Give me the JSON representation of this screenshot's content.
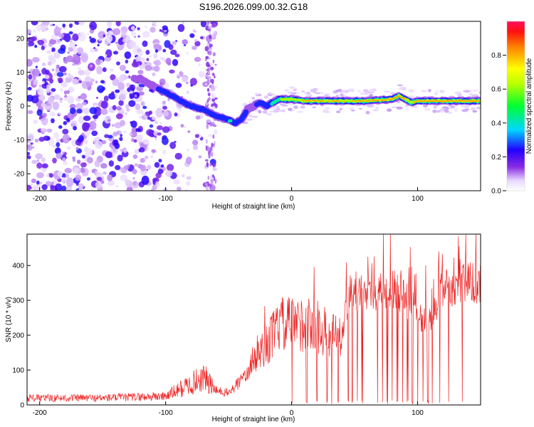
{
  "chart_data": [
    {
      "type": "heatmap",
      "title": "S196.2026.099.00.32.G18",
      "xlabel": "Height of straight line (km)",
      "ylabel": "Frequency (Hz)",
      "xlim": [
        -210,
        150
      ],
      "ylim": [
        -25,
        25
      ],
      "xticks": [
        -200,
        -100,
        0,
        100
      ],
      "yticks": [
        -20,
        -10,
        0,
        10,
        20
      ],
      "colorbar": {
        "label": "Normalized spectral amplitude",
        "range": [
          0.0,
          1.0
        ],
        "ticks": [
          0.0,
          0.2,
          0.4,
          0.6,
          0.8
        ]
      },
      "ridge": {
        "x": [
          -120,
          -110,
          -100,
          -90,
          -80,
          -70,
          -60,
          -50,
          -45,
          -40,
          -35,
          -30,
          -25,
          -20,
          -15,
          -10,
          -5,
          0,
          10,
          20,
          40,
          60,
          80,
          85,
          90,
          95,
          100,
          120,
          150
        ],
        "y": [
          8,
          6,
          4,
          2,
          0,
          -1,
          -3,
          -4,
          -5,
          -4,
          -1,
          0,
          1,
          0,
          1,
          2,
          2,
          2,
          1.5,
          1.5,
          1.5,
          1.5,
          2,
          3,
          2,
          1,
          1.5,
          1.5,
          1.5
        ],
        "amplitude": [
          0.15,
          0.25,
          0.3,
          0.35,
          0.35,
          0.35,
          0.35,
          0.4,
          0.35,
          0.3,
          0.2,
          0.2,
          0.3,
          0.35,
          0.45,
          0.6,
          0.7,
          0.75,
          0.85,
          0.85,
          0.8,
          0.85,
          0.85,
          0.95,
          0.8,
          0.8,
          0.95,
          0.95,
          0.95
        ]
      }
    },
    {
      "type": "line",
      "title": "",
      "xlabel": "Height of straight line (km)",
      "ylabel": "SNR (10 * v/v)",
      "xlim": [
        -210,
        150
      ],
      "ylim": [
        0,
        490
      ],
      "xticks": [
        -200,
        -100,
        0,
        100
      ],
      "yticks": [
        0,
        100,
        200,
        300,
        400
      ],
      "series": [
        {
          "name": "SNR",
          "color": "#ee2222",
          "envelope_x": [
            -210,
            -150,
            -100,
            -80,
            -70,
            -60,
            -50,
            -40,
            -30,
            -20,
            -10,
            0,
            20,
            30,
            40,
            45,
            60,
            80,
            90,
            100,
            110,
            120,
            130,
            150
          ],
          "envelope_y": [
            20,
            20,
            25,
            60,
            80,
            40,
            35,
            70,
            140,
            170,
            230,
            230,
            230,
            200,
            190,
            320,
            320,
            330,
            310,
            260,
            240,
            340,
            340,
            350
          ],
          "dropouts_x": [
            0,
            12,
            20,
            28,
            32,
            37,
            42,
            45,
            48,
            52,
            56,
            60,
            64,
            68,
            72,
            76,
            80,
            84,
            88,
            92,
            96,
            100,
            104,
            108,
            112,
            118,
            125,
            135
          ]
        }
      ]
    }
  ]
}
